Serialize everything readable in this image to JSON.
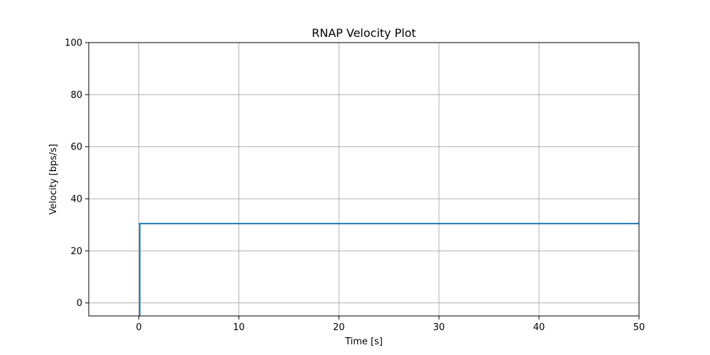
{
  "chart_data": {
    "type": "line",
    "title": "RNAP Velocity Plot",
    "xlabel": "Time [s]",
    "ylabel": "Velocity [bps/s]",
    "xlim": [
      -5,
      50
    ],
    "ylim": [
      -5,
      100
    ],
    "x_ticks": [
      0,
      10,
      20,
      30,
      40,
      50
    ],
    "y_ticks": [
      0,
      20,
      40,
      60,
      80,
      100
    ],
    "grid": true,
    "series": [
      {
        "color": "#1f77b4",
        "x": [
          0.1,
          0.1,
          50
        ],
        "y": [
          -5,
          30.5,
          30.5
        ]
      }
    ]
  }
}
